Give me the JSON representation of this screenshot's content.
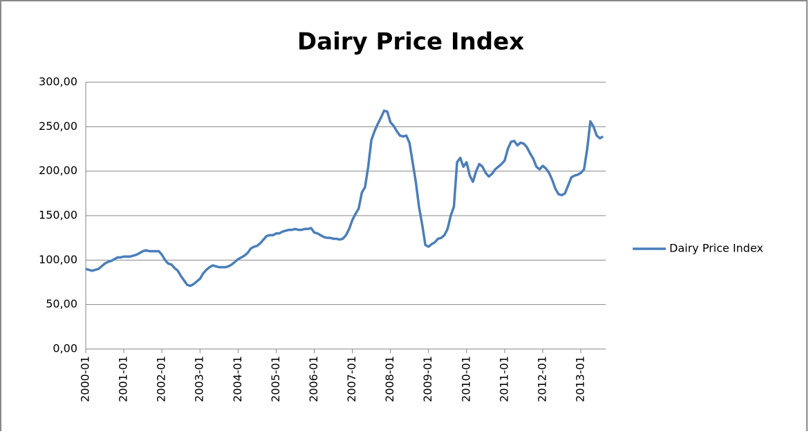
{
  "chart_data": {
    "type": "line",
    "title": "Dairy Price Index",
    "categories": [
      "2000-01",
      null,
      null,
      null,
      null,
      null,
      null,
      null,
      null,
      null,
      null,
      null,
      "2001-01",
      null,
      null,
      null,
      null,
      null,
      null,
      null,
      null,
      null,
      null,
      null,
      "2002-01",
      null,
      null,
      null,
      null,
      null,
      null,
      null,
      null,
      null,
      null,
      null,
      "2003-01",
      null,
      null,
      null,
      null,
      null,
      null,
      null,
      null,
      null,
      null,
      null,
      "2004-01",
      null,
      null,
      null,
      null,
      null,
      null,
      null,
      null,
      null,
      null,
      null,
      "2005-01",
      null,
      null,
      null,
      null,
      null,
      null,
      null,
      null,
      null,
      null,
      null,
      "2006-01",
      null,
      null,
      null,
      null,
      null,
      null,
      null,
      null,
      null,
      null,
      null,
      "2007-01",
      null,
      null,
      null,
      null,
      null,
      null,
      null,
      null,
      null,
      null,
      null,
      "2008-01",
      null,
      null,
      null,
      null,
      null,
      null,
      null,
      null,
      null,
      null,
      null,
      "2009-01",
      null,
      null,
      null,
      null,
      null,
      null,
      null,
      null,
      null,
      null,
      null,
      "2010-01",
      null,
      null,
      null,
      null,
      null,
      null,
      null,
      null,
      null,
      null,
      null,
      "2011-01",
      null,
      null,
      null,
      null,
      null,
      null,
      null,
      null,
      null,
      null,
      null,
      "2012-01",
      null,
      null,
      null,
      null,
      null,
      null,
      null,
      null,
      null,
      null,
      null,
      "2013-01",
      null,
      null,
      null,
      null,
      null,
      null,
      null
    ],
    "series": [
      {
        "name": "Dairy Price Index",
        "color": "#4a7ebb",
        "values": [
          90,
          89,
          88,
          89,
          90,
          93,
          96,
          98,
          99,
          101,
          103,
          103,
          104,
          104,
          104,
          105,
          106,
          108,
          110,
          111,
          110,
          110,
          110,
          110,
          106,
          100,
          96,
          95,
          91,
          88,
          82,
          77,
          72,
          71,
          73,
          76,
          79,
          85,
          89,
          92,
          94,
          93,
          92,
          92,
          92,
          93,
          95,
          98,
          101,
          103,
          105,
          108,
          113,
          115,
          116,
          119,
          123,
          127,
          128,
          128,
          130,
          130,
          132,
          133,
          134,
          134,
          135,
          134,
          134,
          135,
          135,
          136,
          131,
          130,
          128,
          126,
          125,
          125,
          124,
          124,
          123,
          124,
          128,
          135,
          145,
          152,
          158,
          176,
          182,
          205,
          235,
          245,
          253,
          260,
          268,
          267,
          255,
          251,
          245,
          240,
          239,
          240,
          232,
          210,
          188,
          160,
          140,
          117,
          115,
          118,
          120,
          124,
          125,
          128,
          135,
          150,
          160,
          210,
          215,
          205,
          210,
          195,
          188,
          200,
          208,
          205,
          198,
          194,
          197,
          202,
          205,
          208,
          212,
          225,
          233,
          234,
          229,
          232,
          231,
          227,
          220,
          214,
          205,
          202,
          206,
          203,
          198,
          190,
          180,
          174,
          173,
          175,
          184,
          193,
          195,
          196,
          198,
          202,
          225,
          256,
          250,
          240,
          237,
          239
        ]
      }
    ],
    "ylim": [
      0,
      300
    ],
    "yticks": [
      {
        "value": 0,
        "label": "0,00"
      },
      {
        "value": 50,
        "label": "50,00"
      },
      {
        "value": 100,
        "label": "100,00"
      },
      {
        "value": 150,
        "label": "150,00"
      },
      {
        "value": 200,
        "label": "200,00"
      },
      {
        "value": 250,
        "label": "250,00"
      },
      {
        "value": 300,
        "label": "300,00"
      }
    ],
    "grid": true,
    "legend": "right"
  }
}
